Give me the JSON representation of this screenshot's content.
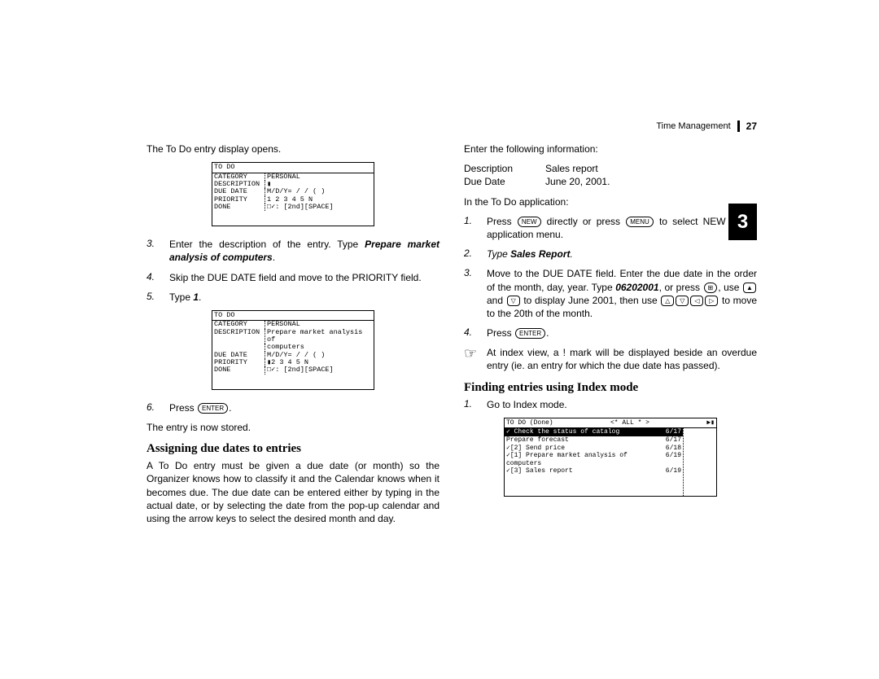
{
  "header": {
    "section": "Time Management",
    "page_number": "27",
    "chapter_tab": "3"
  },
  "left": {
    "intro": "The To Do entry display opens.",
    "shot1": {
      "title": "TO DO",
      "rows": [
        [
          "CATEGORY",
          "PERSONAL"
        ],
        [
          "DESCRIPTION",
          "▮"
        ],
        [
          "DUE DATE",
          "M/D/Y=  /  /    ( )"
        ],
        [
          "PRIORITY",
          "1 2 3 4 5 N"
        ],
        [
          "DONE",
          "□✓: [2nd][SPACE]"
        ]
      ]
    },
    "step3_a": "Enter the description of the entry. Type ",
    "step3_b": "Prepare market analysis of computers",
    "step3_c": ".",
    "step4": "Skip the DUE DATE field and move to the PRIORITY field.",
    "step5_a": "Type ",
    "step5_b": "1",
    "step5_c": ".",
    "shot2": {
      "title": "TO DO",
      "rows": [
        [
          "CATEGORY",
          "PERSONAL"
        ],
        [
          "DESCRIPTION",
          "Prepare market analysis of"
        ],
        [
          "",
          "computers"
        ],
        [
          "DUE DATE",
          "M/D/Y=  /  /    ( )"
        ],
        [
          "PRIORITY",
          "▮2 3 4 5 N"
        ],
        [
          "DONE",
          "□✓: [2nd][SPACE]"
        ]
      ]
    },
    "step6_a": "Press ",
    "step6_key": "ENTER",
    "step6_b": ".",
    "stored": "The entry is now stored.",
    "subhead": "Assigning due dates to entries",
    "assign_para": "A To Do entry must be given a due date (or month) so the Organizer knows how to classify it and the Calendar knows when it becomes due. The due date can be entered either by typing in the actual date, or by selecting the date from the pop-up calendar and using the arrow keys to select the desired month and day."
  },
  "right": {
    "enter_info": "Enter the following information:",
    "info": [
      [
        "Description",
        "Sales report"
      ],
      [
        "Due Date",
        "June 20, 2001."
      ]
    ],
    "in_app": "In the To Do application:",
    "r1_a": "Press ",
    "r1_key1": "NEW",
    "r1_b": " directly or press ",
    "r1_key2": "MENU",
    "r1_c": " to select NEW in the application menu.",
    "r2_a": "Type ",
    "r2_b": "Sales Report",
    "r2_c": ".",
    "r3_a": "Move to the DUE DATE field. Enter the due date in the order of the month, day, year. Type ",
    "r3_b": "06202001",
    "r3_c": ", or press ",
    "r3_key1": "⊞",
    "r3_d": ", use ",
    "r3_key_up": "▲",
    "r3_e": " and ",
    "r3_key_dn": "▽",
    "r3_f": " to display June 2001, then use ",
    "r3_arrows": [
      "△",
      "▽",
      "◁",
      "▷"
    ],
    "r3_g": " to move to the 20th of the month.",
    "r4_a": "Press ",
    "r4_key": "ENTER",
    "r4_b": ".",
    "note": "At index view, a ! mark will be displayed beside an overdue entry (ie. an entry for which the due date has passed).",
    "subhead": "Finding entries using Index mode",
    "f1": "Go to Index mode.",
    "idx": {
      "title_l": "TO DO (Done)",
      "title_m": "<* ALL *     >",
      "title_r": "▶▮",
      "rows": [
        {
          "inv": true,
          "chk": "✓",
          "txt": "   Check the status of catalog",
          "date": "6/17"
        },
        {
          "inv": false,
          "chk": " ",
          "txt": "   Prepare forecast",
          "date": "6/17"
        },
        {
          "inv": false,
          "chk": "✓",
          "txt": "[2] Send price",
          "date": "6/18"
        },
        {
          "inv": false,
          "chk": "✓",
          "txt": "[1] Prepare market analysis of computers",
          "date": "6/19"
        },
        {
          "inv": false,
          "chk": "✓",
          "txt": "[3] Sales report",
          "date": "6/19"
        }
      ]
    }
  }
}
